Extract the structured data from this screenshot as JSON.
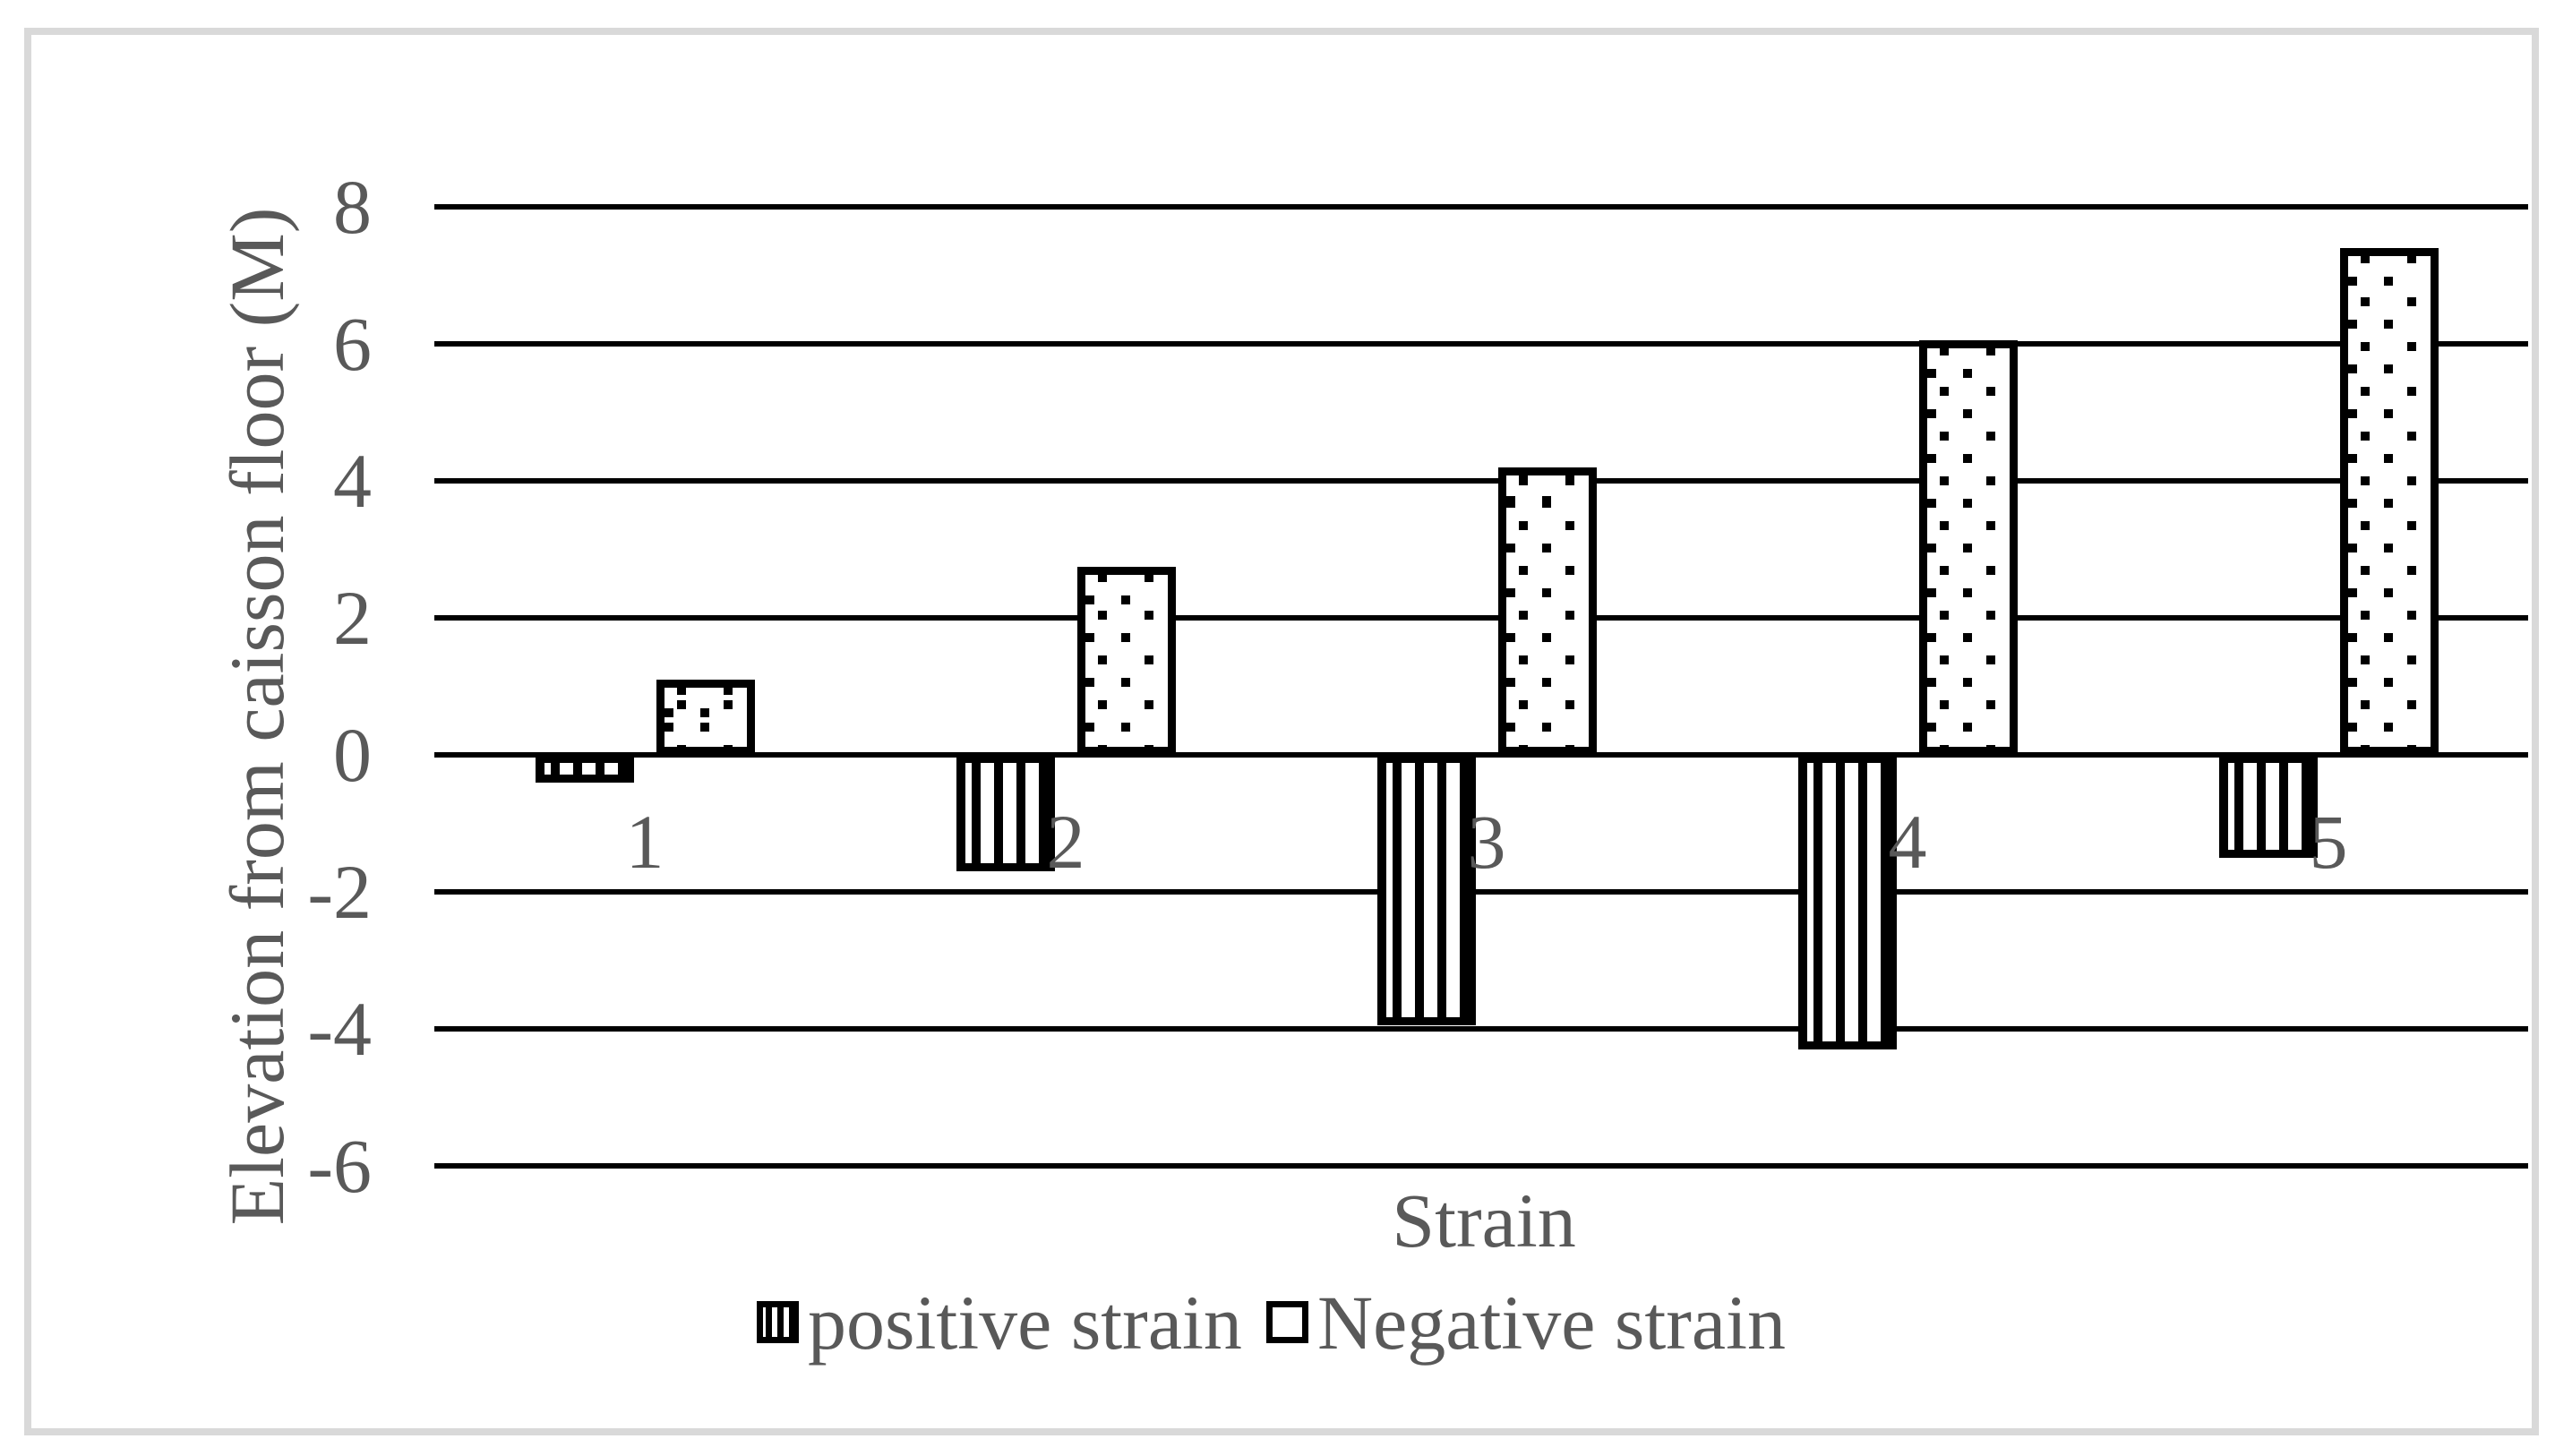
{
  "chart_data": {
    "type": "bar",
    "title": "",
    "xlabel": "Strain",
    "ylabel": "Elevation from caisson floor (M)",
    "categories": [
      "1",
      "2",
      "3",
      "4",
      "5"
    ],
    "series": [
      {
        "name": "positive strain",
        "pattern": "stripes",
        "values": [
          -0.4,
          -1.7,
          -3.95,
          -4.3,
          -1.5
        ]
      },
      {
        "name": "Negative strain",
        "pattern": "dots",
        "values": [
          1.1,
          2.75,
          4.2,
          6.05,
          7.4
        ]
      }
    ],
    "yticks": [
      8,
      6,
      4,
      2,
      0,
      -2,
      -4,
      -6
    ],
    "ylim": [
      -6,
      8
    ],
    "grid": "horizontal",
    "legend_position": "bottom",
    "colors": {
      "bar_fill": "#ffffff",
      "bar_border": "#000000",
      "gridline": "#000000",
      "text": "#595959",
      "frame": "#d9d9d9",
      "background": "#ffffff"
    }
  }
}
